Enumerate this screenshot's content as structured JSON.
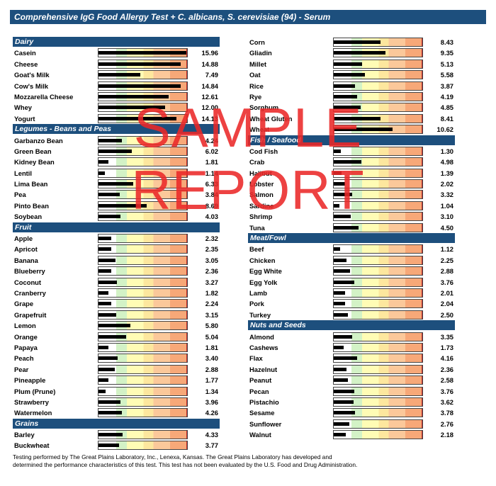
{
  "title": "Comprehensive IgG Food Allergy Test + C. albicans, S. cerevisiae (94) - Serum",
  "scale_max": 16,
  "watermark": {
    "line1": "SAMPLE",
    "line2": "REPORT"
  },
  "footer": {
    "line1": "Testing performed by The Great Plains Laboratory, Inc., Lenexa, Kansas.  The Great Plains Laboratory has developed and",
    "line2": "determined the performance characteristics of this test.  This test has not been evaluated by the U.S.  Food and Drug Administration."
  },
  "left_sections": [
    {
      "title": "Dairy",
      "items": [
        {
          "name": "Casein",
          "value": "15.96"
        },
        {
          "name": "Cheese",
          "value": "14.88"
        },
        {
          "name": "Goat's Milk",
          "value": "7.49"
        },
        {
          "name": "Cow's Milk",
          "value": "14.84"
        },
        {
          "name": "Mozzarella Cheese",
          "value": "12.61"
        },
        {
          "name": "Whey",
          "value": "12.00"
        },
        {
          "name": "Yogurt",
          "value": "14.13"
        }
      ]
    },
    {
      "title": "Legumes - Beans and Peas",
      "items": [
        {
          "name": "Garbanzo Bean",
          "value": "4.24"
        },
        {
          "name": "Green Bean",
          "value": "6.02"
        },
        {
          "name": "Kidney Bean",
          "value": "1.81"
        },
        {
          "name": "Lentil",
          "value": "1.14"
        },
        {
          "name": "Lima Bean",
          "value": "6.33"
        },
        {
          "name": "Pea",
          "value": "3.84"
        },
        {
          "name": "Pinto Bean",
          "value": "8.69"
        },
        {
          "name": "Soybean",
          "value": "4.03"
        }
      ]
    },
    {
      "title": "Fruit",
      "items": [
        {
          "name": "Apple",
          "value": "2.32"
        },
        {
          "name": "Apricot",
          "value": "2.35"
        },
        {
          "name": "Banana",
          "value": "3.05"
        },
        {
          "name": "Blueberry",
          "value": "2.36"
        },
        {
          "name": "Coconut",
          "value": "3.27"
        },
        {
          "name": "Cranberry",
          "value": "1.82"
        },
        {
          "name": "Grape",
          "value": "2.24"
        },
        {
          "name": "Grapefruit",
          "value": "3.15"
        },
        {
          "name": "Lemon",
          "value": "5.80"
        },
        {
          "name": "Orange",
          "value": "5.04"
        },
        {
          "name": "Papaya",
          "value": "1.81"
        },
        {
          "name": "Peach",
          "value": "3.40"
        },
        {
          "name": "Pear",
          "value": "2.88"
        },
        {
          "name": "Pineapple",
          "value": "1.77"
        },
        {
          "name": "Plum (Prune)",
          "value": "1.34"
        },
        {
          "name": "Strawberry",
          "value": "3.96"
        },
        {
          "name": "Watermelon",
          "value": "4.26"
        }
      ]
    },
    {
      "title": "Grains",
      "items": [
        {
          "name": "Barley",
          "value": "4.33"
        },
        {
          "name": "Buckwheat",
          "value": "3.77"
        }
      ]
    }
  ],
  "right_sections": [
    {
      "title": "",
      "items": [
        {
          "name": "Corn",
          "value": "8.43"
        },
        {
          "name": "Gliadin",
          "value": "9.35"
        },
        {
          "name": "Millet",
          "value": "5.13"
        },
        {
          "name": "Oat",
          "value": "5.58"
        },
        {
          "name": "Rice",
          "value": "3.87"
        },
        {
          "name": "Rye",
          "value": "4.19"
        },
        {
          "name": "Sorghum",
          "value": "4.85"
        },
        {
          "name": "Wheat Gluten",
          "value": "8.41"
        },
        {
          "name": "Wheat",
          "value": "10.62"
        }
      ]
    },
    {
      "title": "Fish / Seafood",
      "items": [
        {
          "name": "Cod Fish",
          "value": "1.30"
        },
        {
          "name": "Crab",
          "value": "4.98"
        },
        {
          "name": "Halibut",
          "value": "1.39"
        },
        {
          "name": "Lobster",
          "value": "2.02"
        },
        {
          "name": "Salmon",
          "value": "3.32"
        },
        {
          "name": "Sardine",
          "value": "1.04"
        },
        {
          "name": "Shrimp",
          "value": "3.10"
        },
        {
          "name": "Tuna",
          "value": "4.50"
        }
      ]
    },
    {
      "title": "Meat/Fowl",
      "items": [
        {
          "name": "Beef",
          "value": "1.12"
        },
        {
          "name": "Chicken",
          "value": "2.25"
        },
        {
          "name": "Egg White",
          "value": "2.88"
        },
        {
          "name": "Egg Yolk",
          "value": "3.76"
        },
        {
          "name": "Lamb",
          "value": "2.01"
        },
        {
          "name": "Pork",
          "value": "2.04"
        },
        {
          "name": "Turkey",
          "value": "2.50"
        }
      ]
    },
    {
      "title": "Nuts and Seeds",
      "items": [
        {
          "name": "Almond",
          "value": "3.35"
        },
        {
          "name": "Cashews",
          "value": "1.73"
        },
        {
          "name": "Flax",
          "value": "4.16"
        },
        {
          "name": "Hazelnut",
          "value": "2.36"
        },
        {
          "name": "Peanut",
          "value": "2.58"
        },
        {
          "name": "Pecan",
          "value": "3.76"
        },
        {
          "name": "Pistachio",
          "value": "3.62"
        },
        {
          "name": "Sesame",
          "value": "3.78"
        },
        {
          "name": "Sunflower",
          "value": "2.76"
        },
        {
          "name": "Walnut",
          "value": "2.18"
        }
      ]
    }
  ]
}
